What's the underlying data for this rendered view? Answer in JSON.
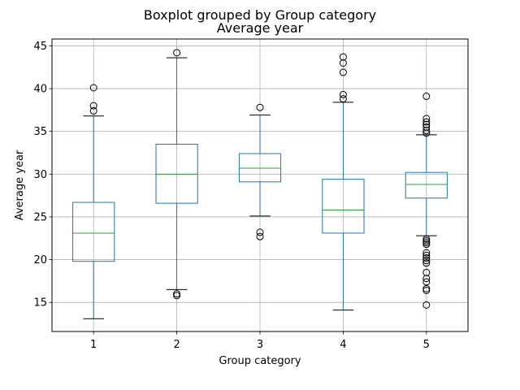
{
  "chart_data": {
    "type": "boxplot",
    "suptitle": "Boxplot grouped by Group category",
    "title": "Average year",
    "xlabel": "Group category",
    "ylabel": "Average year",
    "categories": [
      "1",
      "2",
      "3",
      "4",
      "5"
    ],
    "ylim": [
      11.6,
      45.8
    ],
    "yticks": [
      15,
      20,
      25,
      30,
      35,
      40,
      45
    ],
    "grid": true,
    "colors": {
      "box": "#1f77b4",
      "median": "#2ca02c",
      "caps": "#000000",
      "flier": "#000000",
      "grid": "#b0b0b0"
    },
    "boxes": [
      {
        "category": "1",
        "whisker_low": 13.1,
        "q1": 19.8,
        "median": 23.1,
        "q3": 26.7,
        "whisker_high": 36.8,
        "fliers": [
          37.4,
          38.0,
          40.1
        ]
      },
      {
        "category": "2",
        "whisker_low": 16.5,
        "q1": 26.6,
        "median": 30.0,
        "q3": 33.5,
        "whisker_high": 43.6,
        "fliers": [
          15.8,
          16.0,
          44.2
        ]
      },
      {
        "category": "3",
        "whisker_low": 25.1,
        "q1": 29.1,
        "median": 30.7,
        "q3": 32.4,
        "whisker_high": 36.9,
        "fliers": [
          22.7,
          23.2,
          37.8
        ]
      },
      {
        "category": "4",
        "whisker_low": 14.1,
        "q1": 23.1,
        "median": 25.8,
        "q3": 29.4,
        "whisker_high": 38.4,
        "fliers": [
          38.8,
          39.3,
          41.9,
          43.0,
          43.7
        ]
      },
      {
        "category": "5",
        "whisker_low": 22.8,
        "q1": 27.2,
        "median": 28.8,
        "q3": 30.2,
        "whisker_high": 34.6,
        "fliers": [
          14.7,
          16.4,
          16.6,
          17.4,
          17.8,
          18.5,
          19.6,
          19.9,
          20.2,
          20.5,
          20.8,
          21.8,
          22.0,
          22.2,
          22.4,
          34.8,
          35.1,
          35.5,
          35.8,
          36.1,
          36.5,
          39.1
        ]
      }
    ]
  }
}
